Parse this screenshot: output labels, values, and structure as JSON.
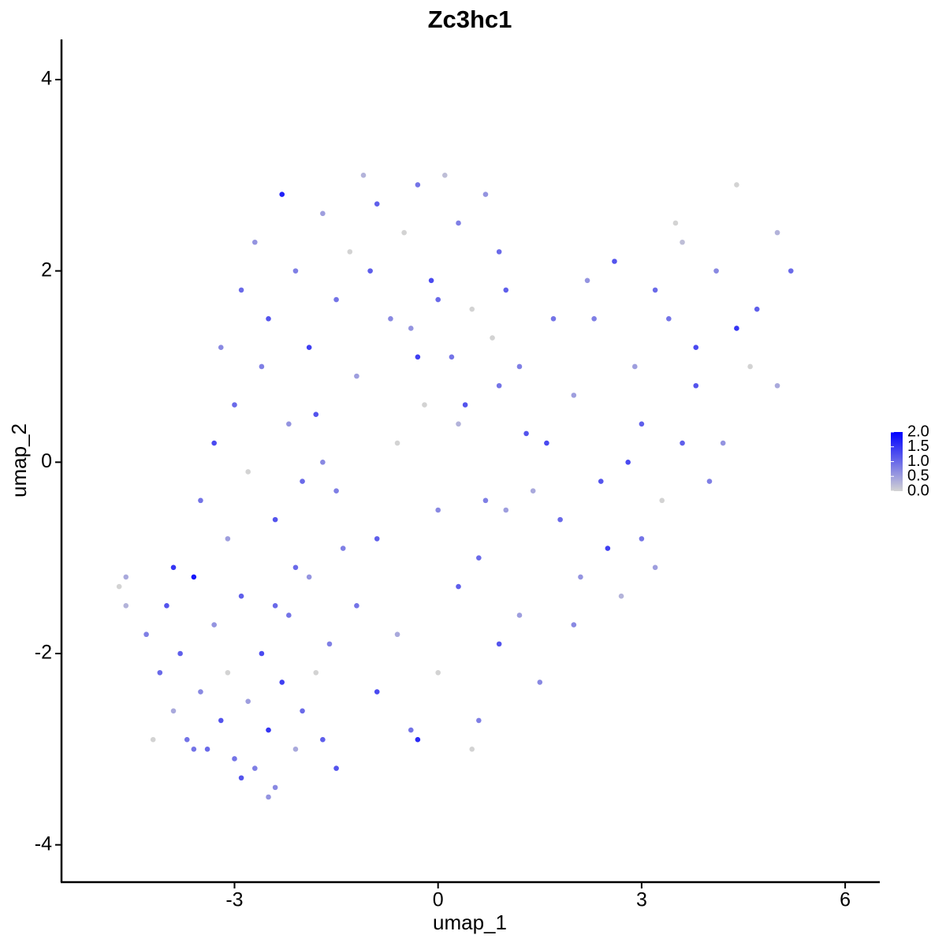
{
  "chart_data": {
    "type": "scatter",
    "title": "Zc3hc1",
    "xlabel": "umap_1",
    "ylabel": "umap_2",
    "xlim": [
      -5.55,
      6.51
    ],
    "ylim": [
      -4.39,
      4.42
    ],
    "xticks": [
      -3,
      0,
      3,
      6
    ],
    "yticks": [
      -4,
      -2,
      0,
      2,
      4
    ],
    "grid": false,
    "x": [
      -4.7,
      -4.6,
      -4.3,
      -4.1,
      -4.0,
      -3.9,
      -3.8,
      -3.7,
      -3.6,
      -3.5,
      -3.4,
      -3.3,
      -3.2,
      -3.1,
      -3.0,
      -2.9,
      -2.8,
      -2.7,
      -2.6,
      -2.5,
      -2.4,
      -2.3,
      -2.2,
      -2.1,
      -2.0,
      -1.9,
      -1.8,
      -1.7,
      -1.6,
      -1.5,
      -3.5,
      -3.3,
      -3.1,
      -3.0,
      -2.8,
      -2.6,
      -2.4,
      -2.2,
      -2.1,
      -3.2,
      -2.9,
      -2.7,
      -2.5,
      -2.3,
      -2.1,
      -1.9,
      -1.7,
      -1.5,
      -1.3,
      -1.1,
      -0.9,
      -0.7,
      -0.5,
      -0.3,
      -0.1,
      0.1,
      0.3,
      0.5,
      0.7,
      0.9,
      -1.8,
      -1.5,
      -1.2,
      -0.9,
      -0.6,
      -0.3,
      0,
      0.3,
      0.6,
      0.9,
      -1.2,
      -0.9,
      -0.6,
      -0.3,
      0,
      0.3,
      0.6,
      0.9,
      1.2,
      1.5,
      -0.4,
      0,
      0.4,
      0.8,
      1.2,
      1.6,
      2.0,
      1.0,
      0.2,
      1.4,
      1.8,
      2.1,
      2.4,
      2.7,
      3.0,
      3.3,
      3.6,
      2.0,
      2.5,
      3.2,
      2.3,
      2.6,
      2.9,
      3.2,
      3.5,
      3.8,
      4.1,
      4.4,
      4.7,
      5.0,
      3.0,
      3.4,
      3.8,
      4.2,
      4.6,
      5.0,
      5.2,
      4.4,
      4.0,
      3.6,
      -4.6,
      -4.2,
      -3.9,
      -3.6,
      -2.9,
      -2.5,
      -2.0,
      -1.4,
      -0.4,
      0.5,
      1.0,
      1.3,
      1.7,
      2.2,
      2.8,
      0.7,
      -0.2,
      -1.0,
      -1.7,
      -2.4
    ],
    "y": [
      -1.3,
      -1.5,
      -1.8,
      -2.2,
      -1.5,
      -2.6,
      -2.0,
      -2.9,
      -1.2,
      -2.4,
      -3.0,
      -1.7,
      -2.7,
      -2.2,
      -3.1,
      -1.4,
      -2.5,
      -3.2,
      -2.0,
      -2.8,
      -3.4,
      -2.3,
      -1.6,
      -3.0,
      -2.6,
      -1.2,
      -2.2,
      -2.9,
      -1.9,
      -3.2,
      -0.4,
      0.2,
      -0.8,
      0.6,
      -0.1,
      1.0,
      -0.6,
      0.4,
      -1.1,
      1.2,
      1.8,
      2.3,
      1.5,
      2.8,
      2.0,
      1.2,
      2.6,
      1.7,
      2.2,
      3.0,
      2.7,
      1.5,
      2.4,
      2.9,
      1.9,
      3.0,
      2.5,
      1.6,
      2.8,
      2.2,
      0.5,
      -0.3,
      0.9,
      -0.8,
      0.2,
      1.1,
      -0.5,
      0.4,
      -1.0,
      0.8,
      -1.5,
      -2.4,
      -1.8,
      -2.9,
      -2.2,
      -1.3,
      -2.7,
      -1.9,
      -1.6,
      -2.3,
      1.4,
      1.7,
      0.6,
      1.3,
      1.0,
      0.2,
      0.7,
      1.8,
      1.1,
      -0.3,
      -0.6,
      -1.2,
      -0.2,
      -1.4,
      -0.8,
      -0.4,
      0.2,
      -1.7,
      -0.9,
      -1.1,
      1.5,
      2.1,
      1.0,
      1.8,
      2.5,
      1.2,
      2.0,
      2.9,
      1.6,
      2.4,
      0.4,
      1.5,
      0.8,
      0.2,
      1.0,
      0.8,
      2.0,
      1.4,
      -0.2,
      2.3,
      -1.2,
      -2.9,
      -1.1,
      -3.0,
      -3.3,
      -3.5,
      -0.2,
      -0.9,
      -2.8,
      -3.0,
      -0.5,
      0.3,
      1.5,
      1.9,
      0.0,
      -0.4,
      0.6,
      2.0,
      0.0,
      -1.5
    ],
    "values": [
      0,
      0.3,
      0.8,
      1.0,
      1.2,
      0.4,
      1.1,
      0.9,
      1.8,
      0.7,
      1.0,
      0.6,
      1.2,
      0,
      0.9,
      1.1,
      0.5,
      0.8,
      1.3,
      1.5,
      0.7,
      1.4,
      0.9,
      0.4,
      1.0,
      0.6,
      0,
      1.1,
      0.8,
      1.2,
      0.9,
      1.3,
      0.5,
      1.0,
      0,
      0.8,
      1.2,
      0.6,
      1.0,
      0.7,
      1.0,
      0.6,
      1.2,
      1.7,
      0.8,
      1.4,
      0.5,
      0.9,
      0,
      0.3,
      1.1,
      0.7,
      0,
      0.9,
      1.3,
      0.2,
      0.8,
      0,
      0.6,
      1.0,
      1.2,
      0.8,
      0.5,
      1.1,
      0,
      1.4,
      0.7,
      0.3,
      1.0,
      0.9,
      0.9,
      1.3,
      0.4,
      1.6,
      0,
      1.1,
      0.8,
      1.2,
      0.5,
      0.7,
      0.6,
      1.0,
      1.2,
      0,
      0.8,
      1.3,
      0.5,
      1.1,
      0.9,
      0.4,
      1.0,
      0.6,
      1.2,
      0.3,
      0.9,
      0,
      1.1,
      0.7,
      1.4,
      0.5,
      0.8,
      1.2,
      0.5,
      1.0,
      0,
      1.3,
      0.7,
      0,
      1.1,
      0.3,
      1.1,
      0.9,
      1.2,
      0.6,
      0,
      0.4,
      1.0,
      1.5,
      0.8,
      0.2,
      0.4,
      0,
      1.5,
      0.9,
      1.2,
      0.6,
      1.0,
      0.8,
      0.9,
      0,
      0.5,
      1.2,
      0.9,
      0.6,
      1.3,
      0.8,
      0,
      1.1,
      0.7,
      1.0
    ],
    "colorbar": {
      "lim": [
        0,
        2
      ],
      "low": "#d3d3d3",
      "high": "#0000ff",
      "ticks": [
        {
          "value": 0,
          "label": "0.0"
        },
        {
          "value": 0.5,
          "label": "0.5"
        },
        {
          "value": 1,
          "label": "1.0"
        },
        {
          "value": 1.5,
          "label": "1.5"
        },
        {
          "value": 2,
          "label": "2.0"
        }
      ]
    }
  }
}
